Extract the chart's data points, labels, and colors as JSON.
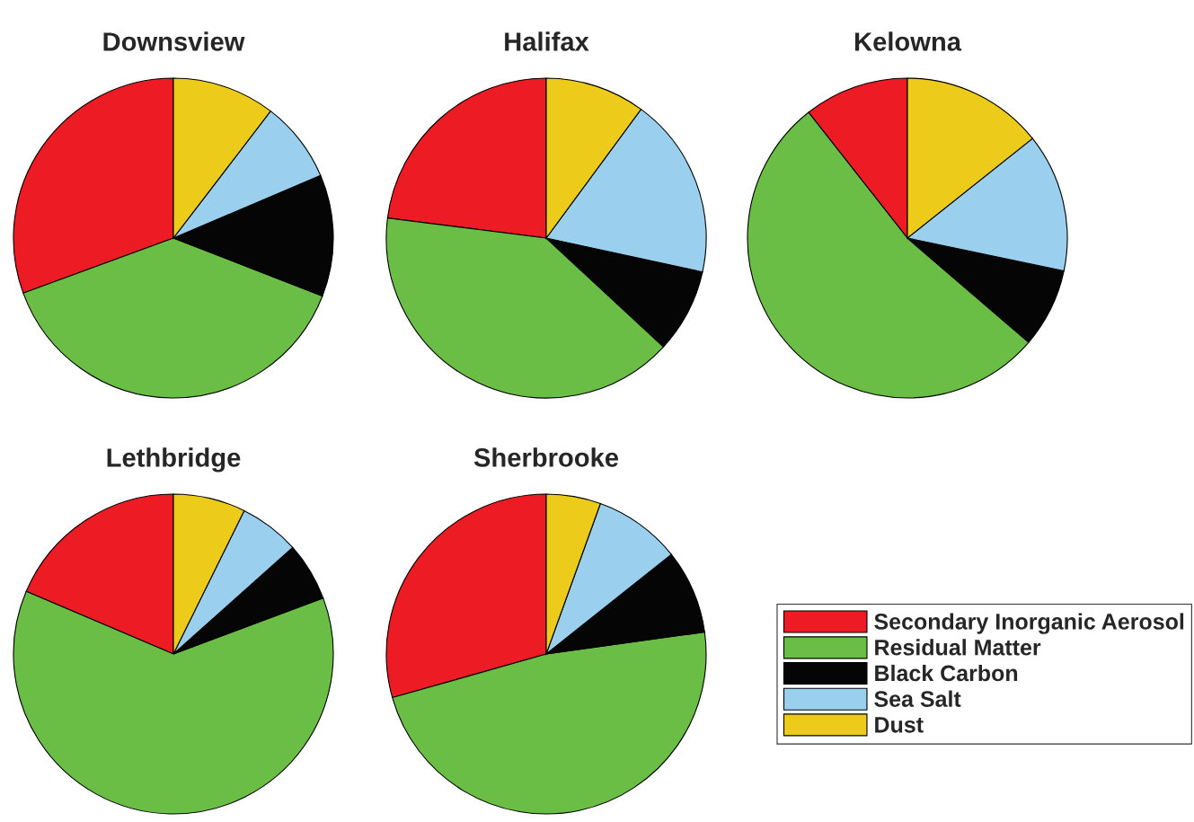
{
  "chart_data": [
    {
      "type": "pie",
      "title": "Downsview",
      "categories": [
        "Secondary Inorganic Aerosol",
        "Residual Matter",
        "Black Carbon",
        "Sea Salt",
        "Dust"
      ],
      "values": [
        30.6,
        38.5,
        12.3,
        8.2,
        10.4
      ],
      "colors": [
        "#ed1c24",
        "#6abd45",
        "#050505",
        "#9bcfee",
        "#eccb1a"
      ],
      "legend": "bottom right"
    },
    {
      "type": "pie",
      "title": "Halifax",
      "categories": [
        null,
        null,
        null,
        null,
        null
      ],
      "values": [
        23.0,
        40.1,
        8.5,
        18.3,
        10.1
      ],
      "colors": [
        "#ed1c24",
        "#6abd45",
        "#050505",
        "#9bcfee",
        "#eccb1a"
      ]
    },
    {
      "type": "pie",
      "title": "Kelowna",
      "categories": [
        null,
        null,
        null,
        null,
        null
      ],
      "values": [
        10.6,
        53.1,
        8.0,
        14.0,
        14.3
      ],
      "colors": [
        "#ed1c24",
        "#6abd45",
        "#050505",
        "#9bcfee",
        "#eccb1a"
      ]
    },
    {
      "type": "pie",
      "title": "Lethbridge",
      "categories": [
        null,
        null,
        null,
        null,
        null
      ],
      "values": [
        18.6,
        62.1,
        5.9,
        6.1,
        7.3
      ],
      "colors": [
        "#ed1c24",
        "#6abd45",
        "#050505",
        "#9bcfee",
        "#eccb1a"
      ]
    },
    {
      "type": "pie",
      "title": "Sherbrooke",
      "categories": [
        null,
        null,
        null,
        null,
        null
      ],
      "values": [
        29.4,
        47.8,
        8.5,
        8.8,
        5.5
      ],
      "colors": [
        "#ed1c24",
        "#6abd45",
        "#050505",
        "#9bcfee",
        "#eccb1a"
      ]
    }
  ]
}
